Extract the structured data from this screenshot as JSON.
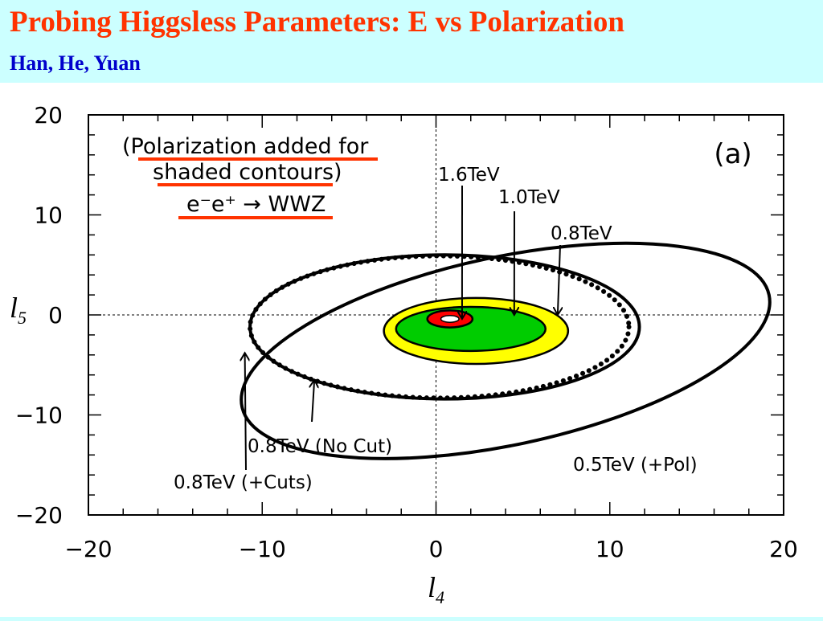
{
  "slide": {
    "title": "Probing Higgsless Parameters:   E vs Polarization",
    "subtitle": "Han, He, Yuan"
  },
  "colors": {
    "title": "#ff3300",
    "subtitle": "#0000cc",
    "background": "#ccffff",
    "underline": "#ff3300",
    "region_0_8TeV": "#ffff00",
    "region_1_0TeV": "#00cc00",
    "region_1_6TeV": "#ff0000"
  },
  "chart_data": {
    "type": "scatter",
    "panel_label": "(a)",
    "xlabel": "l4",
    "ylabel": "l5",
    "xlim": [
      -20,
      20
    ],
    "ylim": [
      -20,
      20
    ],
    "xticks": [
      -20,
      -10,
      0,
      10,
      20
    ],
    "yticks": [
      -20,
      -10,
      0,
      10,
      20
    ],
    "xtick_labels": [
      "−20",
      "−10",
      "0",
      "10",
      "20"
    ],
    "ytick_labels": [
      "−20",
      "−10",
      "0",
      "10",
      "20"
    ],
    "reference_lines": [
      "x = 0",
      "y = 0"
    ],
    "legend_note": {
      "line1": "(Polarization added for",
      "line2": "shaded contours)",
      "process": "e⁻e⁺ → WWZ"
    },
    "series": [
      {
        "name": "0.5TeV (+Pol)",
        "style": "solid",
        "shape": "ellipse",
        "center": [
          4.0,
          -3.6
        ],
        "semi_axes": [
          15.5,
          9.4
        ],
        "rotation_deg": -12
      },
      {
        "name": "0.8TeV (No Cut)",
        "style": "solid",
        "shape": "ellipse",
        "center": [
          0.5,
          -1.2
        ],
        "semi_axes": [
          11.2,
          7.2
        ],
        "rotation_deg": 0
      },
      {
        "name": "0.8TeV (+Cuts)",
        "style": "dotted",
        "shape": "ellipse",
        "center": [
          0.2,
          -1.2
        ],
        "semi_axes": [
          10.9,
          7.1
        ],
        "rotation_deg": 0
      },
      {
        "name": "0.8TeV",
        "style": "filled",
        "shape": "ellipse",
        "center": [
          2.3,
          -1.6
        ],
        "semi_axes": [
          5.3,
          3.3
        ],
        "rotation_deg": 0
      },
      {
        "name": "1.0TeV",
        "style": "filled",
        "shape": "ellipse",
        "center": [
          2.0,
          -1.4
        ],
        "semi_axes": [
          4.3,
          2.2
        ],
        "rotation_deg": 0
      },
      {
        "name": "1.6TeV",
        "style": "filled",
        "shape": "ellipse",
        "center": [
          0.8,
          -0.4
        ],
        "semi_axes": [
          1.3,
          0.85
        ],
        "rotation_deg": 0
      }
    ],
    "annotations": [
      {
        "text": "1.6TeV",
        "target": [
          1.5,
          -0.4
        ]
      },
      {
        "text": "1.0TeV",
        "target": [
          4.5,
          0.0
        ]
      },
      {
        "text": "0.8TeV",
        "target": [
          7.0,
          0.0
        ]
      },
      {
        "text": "0.8TeV (No Cut)",
        "target": [
          -7.0,
          -6.5
        ]
      },
      {
        "text": "0.8TeV (+Cuts)",
        "target": [
          -11.0,
          -3.8
        ]
      },
      {
        "text": "0.5TeV (+Pol)",
        "target": null
      }
    ]
  }
}
